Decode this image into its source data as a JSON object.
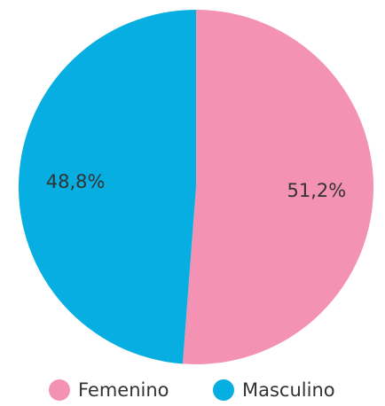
{
  "chart_data": {
    "type": "pie",
    "categories": [
      "Femenino",
      "Masculino"
    ],
    "values": [
      51.2,
      48.8
    ],
    "value_labels": [
      "51,2%",
      "48,8%"
    ],
    "colors": [
      "#f492b4",
      "#06aee1"
    ],
    "start_angle": 0,
    "direction": "clockwise",
    "legend": "bottom"
  }
}
